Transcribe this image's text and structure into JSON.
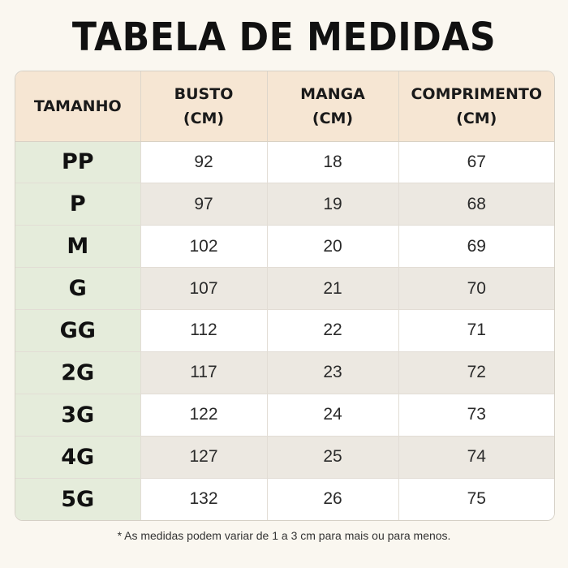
{
  "title": "TABELA DE MEDIDAS",
  "headers": {
    "size": "TAMANHO",
    "bust": [
      "BUSTO",
      "(CM)"
    ],
    "sleeve": [
      "MANGA",
      "(CM)"
    ],
    "length": [
      "COMPRIMENTO",
      "(CM)"
    ]
  },
  "rows": [
    {
      "size": "PP",
      "bust": "92",
      "sleeve": "18",
      "length": "67"
    },
    {
      "size": "P",
      "bust": "97",
      "sleeve": "19",
      "length": "68"
    },
    {
      "size": "M",
      "bust": "102",
      "sleeve": "20",
      "length": "69"
    },
    {
      "size": "G",
      "bust": "107",
      "sleeve": "21",
      "length": "70"
    },
    {
      "size": "GG",
      "bust": "112",
      "sleeve": "22",
      "length": "71"
    },
    {
      "size": "2G",
      "bust": "117",
      "sleeve": "23",
      "length": "72"
    },
    {
      "size": "3G",
      "bust": "122",
      "sleeve": "24",
      "length": "73"
    },
    {
      "size": "4G",
      "bust": "127",
      "sleeve": "25",
      "length": "74"
    },
    {
      "size": "5G",
      "bust": "132",
      "sleeve": "26",
      "length": "75"
    }
  ],
  "footnote": "* As medidas podem variar de 1 a 3 cm para mais ou para menos.",
  "colors": {
    "background": "#faf7f0",
    "header": "#f6e6d3",
    "size_column": "#e5ecdb",
    "row_alt": "#ece8e1"
  }
}
